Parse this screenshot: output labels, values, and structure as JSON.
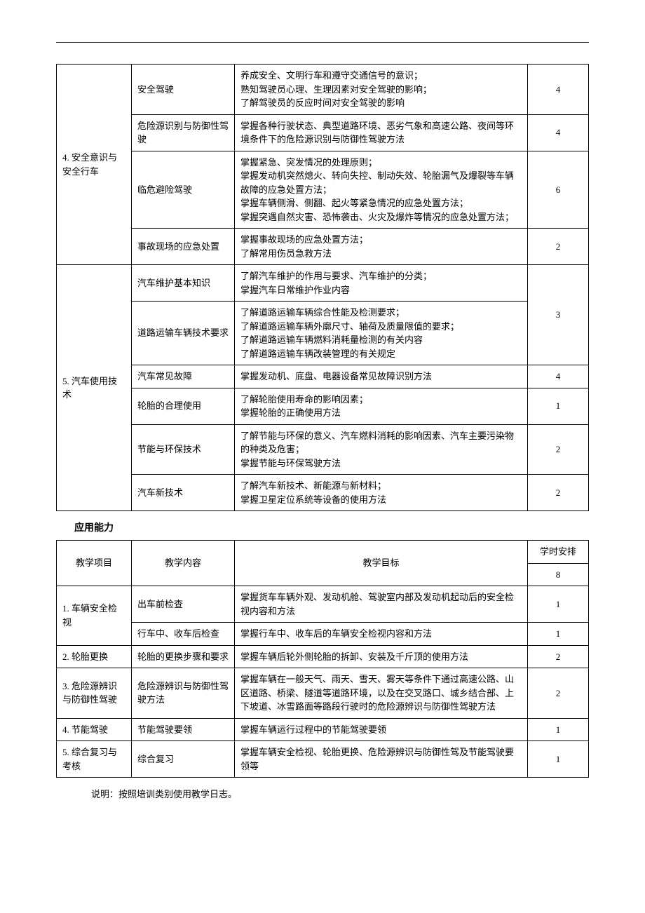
{
  "table1": {
    "groups": [
      {
        "project": "4.  安全意识与安全行车",
        "items": [
          {
            "topic": "安全驾驶",
            "objective": "养成安全、文明行车和遵守交通信号的意识；\n熟知驾驶员心理、生理因素对安全驾驶的影响；\n了解驾驶员的反应时间对安全驾驶的影响",
            "hours": "4"
          },
          {
            "topic": "危险源识别与防御性驾驶",
            "objective": "掌握各种行驶状态、典型道路环境、恶劣气象和高速公路、夜间等环境条件下的危险源识别与防御性驾驶方法",
            "hours": "4"
          },
          {
            "topic": "临危避险驾驶",
            "objective": "掌握紧急、突发情况的处理原则；\n掌握发动机突然熄火、转向失控、制动失效、轮胎漏气及爆裂等车辆故障的应急处置方法；\n掌握车辆侧滑、侧翻、起火等紧急情况的应急处置方法；\n掌握突遇自然灾害、恐怖袭击、火灾及爆炸等情况的应急处置方法；",
            "hours": "6"
          },
          {
            "topic": "事故现场的应急处置",
            "objective": "掌握事故现场的应急处置方法；\n了解常用伤员急救方法",
            "hours": "2"
          }
        ]
      },
      {
        "project": "5.  汽车使用技术",
        "items": [
          {
            "topic": "汽车维护基本知识",
            "objective": "了解汽车维护的作用与要求、汽车维护的分类；\n掌握汽车日常维护作业内容",
            "hours": "",
            "merge_hours": true
          },
          {
            "topic": "道路运输车辆技术要求",
            "objective": "了解道路运输车辆综合性能及检测要求；\n了解道路运输车辆外廓尺寸、轴荷及质量限值的要求；\n了解道路运输车辆燃料消耗量检测的有关内容\n了解道路运输车辆改装管理的有关规定",
            "hours": "3"
          },
          {
            "topic": "汽车常见故障",
            "objective": "掌握发动机、底盘、电器设备常见故障识别方法",
            "hours": "4"
          },
          {
            "topic": "轮胎的合理使用",
            "objective": "了解轮胎使用寿命的影响因素；\n掌握轮胎的正确使用方法",
            "hours": "1"
          },
          {
            "topic": "节能与环保技术",
            "objective": "了解节能与环保的意义、汽车燃料消耗的影响因素、汽车主要污染物的种类及危害；\n掌握节能与环保驾驶方法",
            "hours": "2"
          },
          {
            "topic": "汽车新技术",
            "objective": "了解汽车新技术、新能源与新材料；\n掌握卫星定位系统等设备的使用方法",
            "hours": "2"
          }
        ]
      }
    ]
  },
  "section2_title": "应用能力",
  "table2": {
    "header": {
      "project": "教学项目",
      "topic": "教学内容",
      "objective": "教学目标",
      "hours_caption": "学时安排",
      "hours_total": "8"
    },
    "rows": [
      {
        "project": "1.  车辆安全检视",
        "project_rowspan": 2,
        "topic": "出车前检查",
        "objective": "掌握货车车辆外观、发动机舱、驾驶室内部及发动机起动后的安全检视内容和方法",
        "hours": "1"
      },
      {
        "project": "",
        "topic": "行车中、收车后检查",
        "objective": "掌握行车中、收车后的车辆安全检视内容和方法",
        "hours": "1"
      },
      {
        "project": "2.  轮胎更换",
        "project_rowspan": 1,
        "topic": "轮胎的更换步骤和要求",
        "objective": "掌握车辆后轮外侧轮胎的拆卸、安装及千斤顶的使用方法",
        "hours": "2"
      },
      {
        "project": "3.  危险源辨识与防御性驾驶",
        "project_rowspan": 1,
        "topic": "危险源辨识与防御性驾驶方法",
        "objective": "掌握车辆在一般天气、雨天、雪天、雾天等条件下通过高速公路、山区道路、桥梁、隧道等道路环境，以及在交叉路口、城乡结合部、上下坡道、冰雪路面等路段行驶时的危险源辨识与防御性驾驶方法",
        "hours": "2"
      },
      {
        "project": "4.  节能驾驶",
        "project_rowspan": 1,
        "topic": "节能驾驶要领",
        "objective": "掌握车辆运行过程中的节能驾驶要领",
        "hours": "1"
      },
      {
        "project": "5.  综合复习与考核",
        "project_rowspan": 1,
        "topic": "综合复习",
        "objective": "掌握车辆安全检视、轮胎更换、危险源辨识与防御性驾及节能驾驶要领等",
        "hours": "1"
      }
    ]
  },
  "note": "说明：按照培训类别使用教学日志。"
}
